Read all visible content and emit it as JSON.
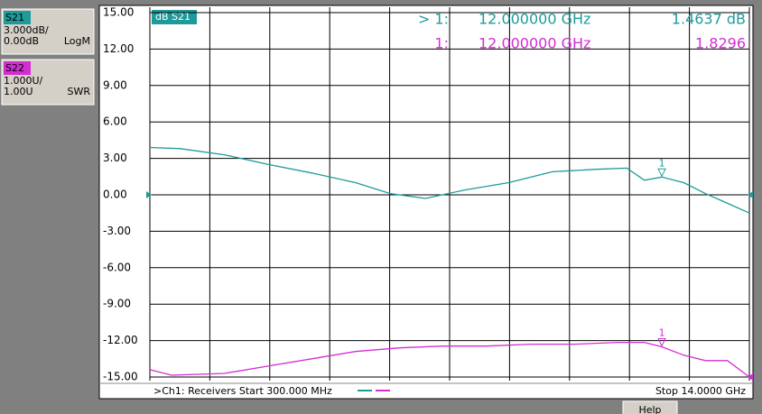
{
  "chart_data": {
    "type": "line",
    "xlim": [
      0.3,
      14
    ],
    "ylim": [
      -15,
      15
    ],
    "y2lim": [
      1,
      11
    ],
    "yticks": [
      {
        "value": 15,
        "label": "15.00"
      },
      {
        "value": 12,
        "label": "12.00"
      },
      {
        "value": 9,
        "label": "9.00"
      },
      {
        "value": 6,
        "label": "6.00"
      },
      {
        "value": 3,
        "label": "3.00"
      },
      {
        "value": 0,
        "label": "0.00"
      },
      {
        "value": -3,
        "label": "-3.00"
      },
      {
        "value": -6,
        "label": "-6.00"
      },
      {
        "value": -9,
        "label": "-9.00"
      },
      {
        "value": -12,
        "label": "-12.00"
      },
      {
        "value": -15,
        "label": "-15.00"
      }
    ],
    "grid": true,
    "active_trace_label": "dB S21",
    "series": [
      {
        "name": "S21",
        "scale": "3.000dB/",
        "reference": "0.00dB",
        "format": "LogM",
        "color": "#1f9a9a",
        "x": [
          0.3,
          1,
          2,
          3,
          4,
          5,
          5.8,
          6.6,
          7.5,
          8.5,
          9.5,
          10.5,
          11.2,
          11.6,
          12,
          12.5,
          13,
          13.5,
          14
        ],
        "values": [
          3.9,
          3.8,
          3.3,
          2.5,
          1.8,
          1.0,
          0.1,
          -0.3,
          0.4,
          1.0,
          1.9,
          2.1,
          2.2,
          1.2,
          1.46,
          1.0,
          0.1,
          -0.7,
          -1.5
        ],
        "marker": {
          "label": "1",
          "prefix": "> 1:",
          "x": 12,
          "x_label": "12.000000 GHz",
          "value": 1.4637,
          "value_label": "1.4637 dB"
        }
      },
      {
        "name": "S22",
        "scale": "1.000U/",
        "reference": "1.00U",
        "format": "SWR",
        "color": "#d22ed2",
        "axis": "y2",
        "x": [
          0.3,
          0.8,
          2,
          3,
          4,
          5,
          6,
          7,
          8,
          9,
          10,
          11,
          11.6,
          12,
          12.5,
          13,
          13.5,
          14
        ],
        "values": [
          1.2,
          1.05,
          1.1,
          1.3,
          1.5,
          1.7,
          1.8,
          1.85,
          1.85,
          1.9,
          1.9,
          1.95,
          1.95,
          1.83,
          1.6,
          1.45,
          1.45,
          1.0
        ],
        "marker": {
          "label": "1",
          "prefix": "1:",
          "x": 12,
          "x_label": "12.000000 GHz",
          "value": 1.8296,
          "value_label": "1.8296"
        }
      }
    ],
    "footer_left": ">Ch1: Receivers Start  300.000 MHz",
    "footer_right": "Stop  14.0000 GHz",
    "help_button": "Help"
  }
}
